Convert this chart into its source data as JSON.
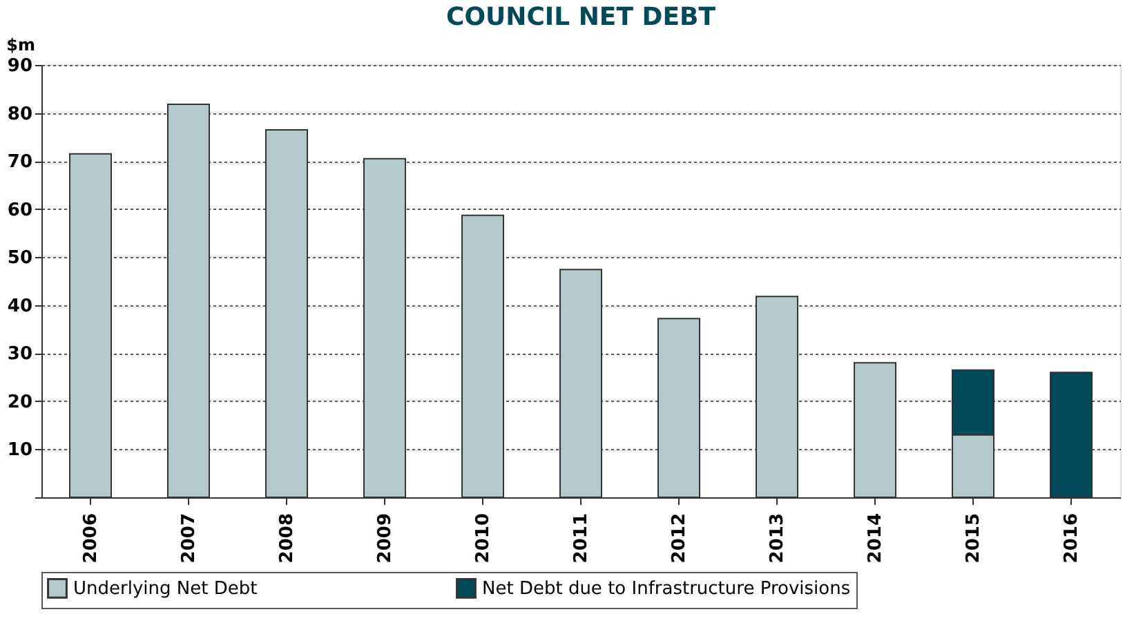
{
  "chart_data": {
    "type": "bar",
    "title": "COUNCIL NET DEBT",
    "ylabel": "$m",
    "stacked": true,
    "categories": [
      "2006",
      "2007",
      "2008",
      "2009",
      "2010",
      "2011",
      "2012",
      "2013",
      "2014",
      "2015",
      "2016"
    ],
    "series": [
      {
        "name": "Underlying Net Debt",
        "color": "#b3c8cb",
        "values": [
          71.5,
          81.8,
          76.5,
          70.5,
          58.7,
          47.4,
          37.2,
          41.8,
          28,
          13,
          null
        ]
      },
      {
        "name": "Net Debt due to Infrastructure Provisions",
        "color": "#004a59",
        "values": [
          null,
          null,
          null,
          null,
          null,
          null,
          null,
          null,
          null,
          13.5,
          26
        ]
      }
    ],
    "ylim": [
      0,
      90
    ],
    "yticks": [
      {
        "value": 0,
        "label": null
      },
      10,
      20,
      30,
      40,
      50,
      60,
      70,
      80,
      90
    ],
    "grid": "y",
    "legend": "bottom"
  }
}
